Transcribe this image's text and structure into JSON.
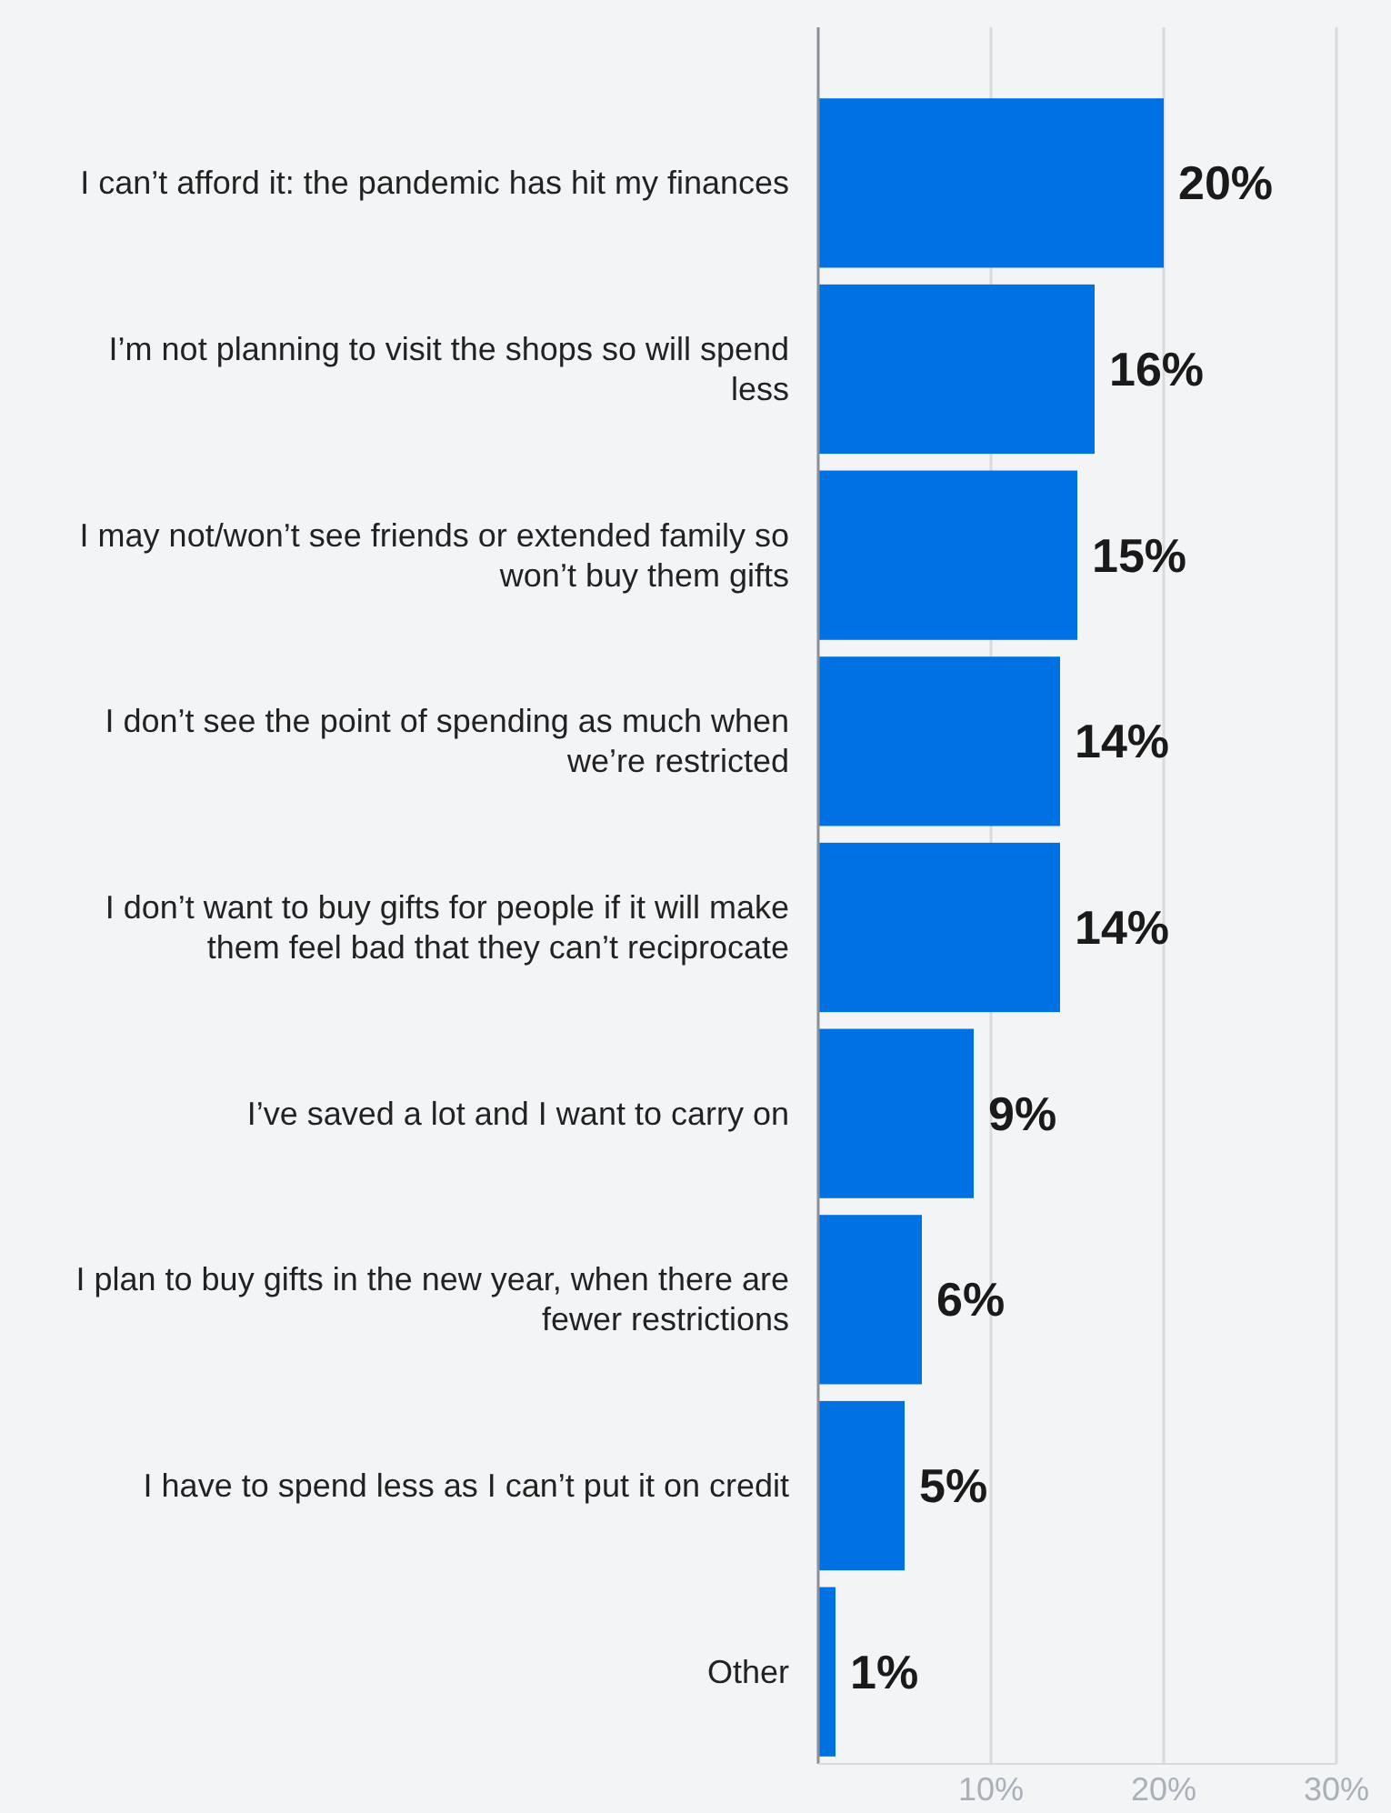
{
  "chart_data": {
    "type": "bar",
    "orientation": "horizontal",
    "categories": [
      "I can’t afford it: the pandemic has hit my finances",
      "I’m not planning to visit the shops so will spend less",
      "I may not/won’t see friends or extended family so won’t buy them gifts",
      "I don’t see the point of spending as much when we’re restricted",
      "I don’t want to buy gifts for people if it will make them feel bad that they can’t reciprocate",
      "I’ve saved a lot and I want to carry on",
      "I plan to buy gifts in the new year, when there are fewer restrictions",
      "I have to spend less as I can’t put it on credit",
      "Other"
    ],
    "values": [
      20,
      16,
      15,
      14,
      14,
      9,
      6,
      5,
      1
    ],
    "value_labels": [
      "20%",
      "16%",
      "15%",
      "14%",
      "14%",
      "9%",
      "6%",
      "5%",
      "1%"
    ],
    "color": "#0071e3",
    "xlim": [
      0,
      30
    ],
    "xticks": [
      {
        "value": 0,
        "label": null
      },
      {
        "value": 10,
        "label": "10%"
      },
      {
        "value": 20,
        "label": "20%"
      },
      {
        "value": 30,
        "label": "30%"
      }
    ],
    "grid": "x"
  }
}
